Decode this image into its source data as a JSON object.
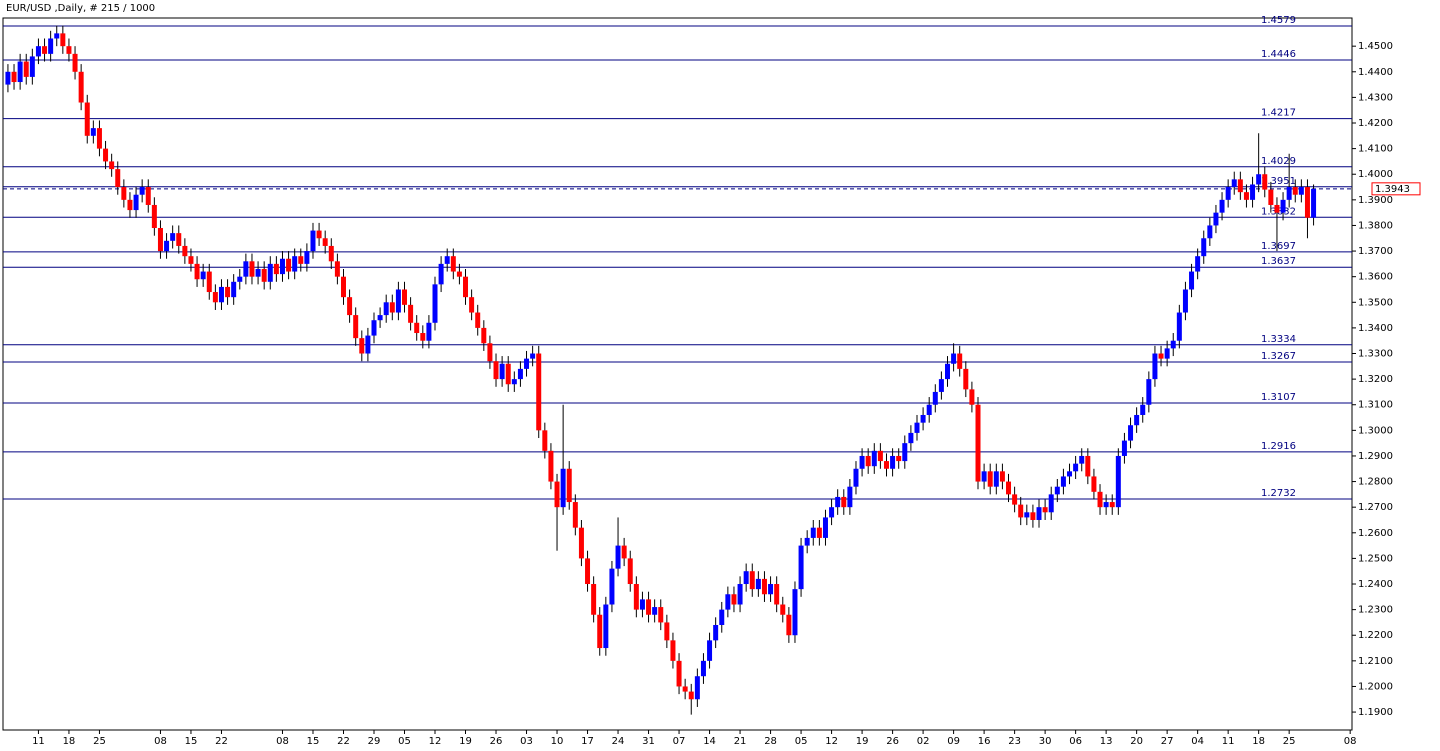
{
  "chart_data": {
    "type": "candlestick",
    "title": "EUR/USD ,Daily, # 215 / 1000",
    "up_color": "#0000ff",
    "down_color": "#ff0000",
    "wick_color": "#000000",
    "level_color": "#000080",
    "price_color": "#ff0000",
    "xlim": [
      -1.3,
      220.3
    ],
    "ylim": [
      1.183,
      1.461
    ],
    "xticks": [
      {
        "value": 5,
        "label": "11"
      },
      {
        "value": 10,
        "label": "18"
      },
      {
        "value": 15,
        "label": "25"
      },
      {
        "value": 25,
        "label": "08"
      },
      {
        "value": 30,
        "label": "15"
      },
      {
        "value": 35,
        "label": "22"
      },
      {
        "value": 45,
        "label": "08"
      },
      {
        "value": 50,
        "label": "15"
      },
      {
        "value": 55,
        "label": "22"
      },
      {
        "value": 60,
        "label": "29"
      },
      {
        "value": 65,
        "label": "05"
      },
      {
        "value": 70,
        "label": "12"
      },
      {
        "value": 75,
        "label": "19"
      },
      {
        "value": 80,
        "label": "26"
      },
      {
        "value": 85,
        "label": "03"
      },
      {
        "value": 90,
        "label": "10"
      },
      {
        "value": 95,
        "label": "17"
      },
      {
        "value": 100,
        "label": "24"
      },
      {
        "value": 105,
        "label": "31"
      },
      {
        "value": 110,
        "label": "07"
      },
      {
        "value": 115,
        "label": "14"
      },
      {
        "value": 120,
        "label": "21"
      },
      {
        "value": 125,
        "label": "28"
      },
      {
        "value": 130,
        "label": "05"
      },
      {
        "value": 135,
        "label": "12"
      },
      {
        "value": 140,
        "label": "19"
      },
      {
        "value": 145,
        "label": "26"
      },
      {
        "value": 150,
        "label": "02"
      },
      {
        "value": 155,
        "label": "09"
      },
      {
        "value": 160,
        "label": "16"
      },
      {
        "value": 165,
        "label": "23"
      },
      {
        "value": 170,
        "label": "30"
      },
      {
        "value": 175,
        "label": "06"
      },
      {
        "value": 180,
        "label": "13"
      },
      {
        "value": 185,
        "label": "20"
      },
      {
        "value": 190,
        "label": "27"
      },
      {
        "value": 195,
        "label": "04"
      },
      {
        "value": 200,
        "label": "11"
      },
      {
        "value": 205,
        "label": "18"
      },
      {
        "value": 210,
        "label": "25"
      },
      {
        "value": 220,
        "label": "08"
      }
    ],
    "yticks": [
      {
        "value": 1.19,
        "label": "1.1900"
      },
      {
        "value": 1.2,
        "label": "1.2000"
      },
      {
        "value": 1.21,
        "label": "1.2100"
      },
      {
        "value": 1.22,
        "label": "1.2200"
      },
      {
        "value": 1.23,
        "label": "1.2300"
      },
      {
        "value": 1.24,
        "label": "1.2400"
      },
      {
        "value": 1.25,
        "label": "1.2500"
      },
      {
        "value": 1.26,
        "label": "1.2600"
      },
      {
        "value": 1.27,
        "label": "1.2700"
      },
      {
        "value": 1.28,
        "label": "1.2800"
      },
      {
        "value": 1.29,
        "label": "1.2900"
      },
      {
        "value": 1.3,
        "label": "1.3000"
      },
      {
        "value": 1.31,
        "label": "1.3100"
      },
      {
        "value": 1.32,
        "label": "1.3200"
      },
      {
        "value": 1.33,
        "label": "1.3300"
      },
      {
        "value": 1.34,
        "label": "1.3400"
      },
      {
        "value": 1.35,
        "label": "1.3500"
      },
      {
        "value": 1.36,
        "label": "1.3600"
      },
      {
        "value": 1.37,
        "label": "1.3700"
      },
      {
        "value": 1.38,
        "label": "1.3800"
      },
      {
        "value": 1.39,
        "label": "1.3900"
      },
      {
        "value": 1.4,
        "label": "1.4000"
      },
      {
        "value": 1.41,
        "label": "1.4100"
      },
      {
        "value": 1.42,
        "label": "1.4200"
      },
      {
        "value": 1.43,
        "label": "1.4300"
      },
      {
        "value": 1.44,
        "label": "1.4400"
      },
      {
        "value": 1.45,
        "label": "1.4500"
      }
    ],
    "levels": [
      1.4579,
      1.4446,
      1.4217,
      1.4029,
      1.3951,
      1.3832,
      1.3697,
      1.3637,
      1.3334,
      1.3267,
      1.3107,
      1.2916,
      1.2732
    ],
    "current_price": 1.3943,
    "open": [
      1.435,
      1.44,
      1.436,
      1.444,
      1.438,
      1.446,
      1.45,
      1.447,
      1.453,
      1.455,
      1.45,
      1.447,
      1.44,
      1.428,
      1.415,
      1.418,
      1.41,
      1.405,
      1.402,
      1.395,
      1.39,
      1.386,
      1.392,
      1.395,
      1.388,
      1.379,
      1.37,
      1.374,
      1.377,
      1.372,
      1.368,
      1.365,
      1.359,
      1.362,
      1.354,
      1.35,
      1.356,
      1.352,
      1.358,
      1.36,
      1.366,
      1.36,
      1.363,
      1.358,
      1.365,
      1.361,
      1.367,
      1.362,
      1.368,
      1.365,
      1.37,
      1.378,
      1.375,
      1.372,
      1.366,
      1.36,
      1.352,
      1.345,
      1.336,
      1.33,
      1.337,
      1.343,
      1.345,
      1.35,
      1.346,
      1.355,
      1.349,
      1.342,
      1.338,
      1.335,
      1.342,
      1.357,
      1.365,
      1.368,
      1.362,
      1.36,
      1.352,
      1.346,
      1.34,
      1.334,
      1.327,
      1.32,
      1.326,
      1.318,
      1.32,
      1.324,
      1.328,
      1.33,
      1.3,
      1.292,
      1.28,
      1.27,
      1.285,
      1.272,
      1.262,
      1.25,
      1.24,
      1.228,
      1.215,
      1.232,
      1.246,
      1.255,
      1.25,
      1.24,
      1.23,
      1.234,
      1.228,
      1.231,
      1.225,
      1.218,
      1.21,
      1.2,
      1.198,
      1.195,
      1.204,
      1.21,
      1.218,
      1.224,
      1.23,
      1.236,
      1.232,
      1.24,
      1.245,
      1.238,
      1.242,
      1.236,
      1.24,
      1.232,
      1.228,
      1.22,
      1.238,
      1.255,
      1.258,
      1.262,
      1.258,
      1.266,
      1.27,
      1.274,
      1.27,
      1.278,
      1.285,
      1.29,
      1.286,
      1.292,
      1.288,
      1.285,
      1.29,
      1.288,
      1.295,
      1.299,
      1.303,
      1.306,
      1.31,
      1.315,
      1.32,
      1.326,
      1.33,
      1.324,
      1.316,
      1.31,
      1.28,
      1.284,
      1.278,
      1.284,
      1.28,
      1.275,
      1.271,
      1.266,
      1.268,
      1.265,
      1.27,
      1.268,
      1.275,
      1.278,
      1.282,
      1.284,
      1.287,
      1.29,
      1.282,
      1.276,
      1.27,
      1.272,
      1.27,
      1.29,
      1.296,
      1.302,
      1.306,
      1.31,
      1.32,
      1.33,
      1.328,
      1.332,
      1.335,
      1.346,
      1.355,
      1.362,
      1.368,
      1.375,
      1.38,
      1.385,
      1.39,
      1.395,
      1.398,
      1.393,
      1.39,
      1.396,
      1.4,
      1.394,
      1.388,
      1.385,
      1.39,
      1.395,
      1.392,
      1.395,
      1.383
    ],
    "high": [
      1.443,
      1.443,
      1.447,
      1.447,
      1.449,
      1.453,
      1.453,
      1.456,
      1.458,
      1.458,
      1.453,
      1.45,
      1.443,
      1.431,
      1.421,
      1.421,
      1.413,
      1.408,
      1.405,
      1.398,
      1.393,
      1.395,
      1.398,
      1.398,
      1.391,
      1.382,
      1.377,
      1.38,
      1.38,
      1.375,
      1.371,
      1.368,
      1.365,
      1.365,
      1.357,
      1.359,
      1.359,
      1.361,
      1.363,
      1.369,
      1.369,
      1.366,
      1.366,
      1.368,
      1.368,
      1.37,
      1.37,
      1.371,
      1.371,
      1.373,
      1.381,
      1.381,
      1.378,
      1.375,
      1.369,
      1.363,
      1.355,
      1.348,
      1.339,
      1.34,
      1.346,
      1.348,
      1.353,
      1.353,
      1.358,
      1.358,
      1.352,
      1.345,
      1.341,
      1.345,
      1.36,
      1.368,
      1.371,
      1.371,
      1.365,
      1.363,
      1.355,
      1.349,
      1.343,
      1.337,
      1.33,
      1.329,
      1.329,
      1.323,
      1.327,
      1.331,
      1.333,
      1.333,
      1.303,
      1.295,
      1.283,
      1.31,
      1.288,
      1.275,
      1.265,
      1.253,
      1.243,
      1.231,
      1.235,
      1.249,
      1.266,
      1.258,
      1.253,
      1.243,
      1.237,
      1.237,
      1.234,
      1.234,
      1.228,
      1.221,
      1.213,
      1.203,
      1.201,
      1.207,
      1.213,
      1.221,
      1.227,
      1.233,
      1.239,
      1.239,
      1.243,
      1.248,
      1.248,
      1.245,
      1.245,
      1.243,
      1.243,
      1.235,
      1.231,
      1.241,
      1.258,
      1.261,
      1.265,
      1.265,
      1.269,
      1.273,
      1.277,
      1.277,
      1.281,
      1.288,
      1.293,
      1.293,
      1.295,
      1.295,
      1.291,
      1.293,
      1.293,
      1.298,
      1.302,
      1.306,
      1.309,
      1.313,
      1.318,
      1.323,
      1.329,
      1.334,
      1.333,
      1.327,
      1.319,
      1.313,
      1.287,
      1.287,
      1.287,
      1.287,
      1.283,
      1.278,
      1.274,
      1.271,
      1.271,
      1.273,
      1.273,
      1.278,
      1.281,
      1.285,
      1.287,
      1.29,
      1.293,
      1.293,
      1.285,
      1.279,
      1.275,
      1.275,
      1.293,
      1.299,
      1.305,
      1.309,
      1.313,
      1.323,
      1.333,
      1.333,
      1.335,
      1.338,
      1.349,
      1.358,
      1.365,
      1.371,
      1.378,
      1.383,
      1.388,
      1.393,
      1.398,
      1.401,
      1.401,
      1.396,
      1.399,
      1.416,
      1.403,
      1.397,
      1.391,
      1.393,
      1.408,
      1.398,
      1.398,
      1.398,
      1.396
    ],
    "low": [
      1.432,
      1.433,
      1.433,
      1.435,
      1.435,
      1.443,
      1.444,
      1.444,
      1.45,
      1.447,
      1.444,
      1.437,
      1.425,
      1.412,
      1.412,
      1.407,
      1.402,
      1.399,
      1.392,
      1.387,
      1.383,
      1.383,
      1.389,
      1.385,
      1.376,
      1.367,
      1.367,
      1.371,
      1.369,
      1.365,
      1.362,
      1.356,
      1.356,
      1.351,
      1.347,
      1.347,
      1.349,
      1.349,
      1.355,
      1.357,
      1.357,
      1.357,
      1.355,
      1.355,
      1.358,
      1.358,
      1.359,
      1.359,
      1.362,
      1.362,
      1.367,
      1.372,
      1.369,
      1.363,
      1.357,
      1.349,
      1.342,
      1.333,
      1.327,
      1.327,
      1.334,
      1.34,
      1.342,
      1.343,
      1.343,
      1.346,
      1.339,
      1.335,
      1.332,
      1.332,
      1.339,
      1.354,
      1.362,
      1.359,
      1.357,
      1.349,
      1.343,
      1.337,
      1.331,
      1.324,
      1.317,
      1.317,
      1.315,
      1.315,
      1.317,
      1.321,
      1.325,
      1.297,
      1.289,
      1.277,
      1.253,
      1.267,
      1.269,
      1.259,
      1.247,
      1.237,
      1.225,
      1.212,
      1.212,
      1.229,
      1.243,
      1.247,
      1.237,
      1.227,
      1.227,
      1.225,
      1.225,
      1.222,
      1.215,
      1.207,
      1.197,
      1.195,
      1.189,
      1.192,
      1.201,
      1.207,
      1.215,
      1.221,
      1.227,
      1.229,
      1.229,
      1.237,
      1.235,
      1.235,
      1.233,
      1.233,
      1.229,
      1.225,
      1.217,
      1.217,
      1.235,
      1.252,
      1.255,
      1.255,
      1.255,
      1.263,
      1.267,
      1.267,
      1.267,
      1.275,
      1.282,
      1.283,
      1.283,
      1.285,
      1.282,
      1.282,
      1.285,
      1.285,
      1.292,
      1.296,
      1.3,
      1.303,
      1.307,
      1.312,
      1.317,
      1.323,
      1.321,
      1.313,
      1.307,
      1.277,
      1.277,
      1.275,
      1.275,
      1.277,
      1.272,
      1.268,
      1.263,
      1.263,
      1.262,
      1.262,
      1.265,
      1.265,
      1.272,
      1.275,
      1.279,
      1.281,
      1.284,
      1.279,
      1.273,
      1.267,
      1.267,
      1.267,
      1.267,
      1.287,
      1.293,
      1.299,
      1.303,
      1.307,
      1.317,
      1.325,
      1.325,
      1.329,
      1.332,
      1.343,
      1.352,
      1.359,
      1.365,
      1.372,
      1.377,
      1.382,
      1.387,
      1.392,
      1.39,
      1.387,
      1.387,
      1.393,
      1.391,
      1.385,
      1.37,
      1.382,
      1.387,
      1.389,
      1.389,
      1.375,
      1.38
    ],
    "close": [
      1.44,
      1.436,
      1.444,
      1.438,
      1.446,
      1.45,
      1.447,
      1.453,
      1.455,
      1.45,
      1.447,
      1.44,
      1.428,
      1.415,
      1.418,
      1.41,
      1.405,
      1.402,
      1.395,
      1.39,
      1.386,
      1.392,
      1.395,
      1.388,
      1.379,
      1.37,
      1.374,
      1.377,
      1.372,
      1.368,
      1.365,
      1.359,
      1.362,
      1.354,
      1.35,
      1.356,
      1.352,
      1.358,
      1.36,
      1.366,
      1.36,
      1.363,
      1.358,
      1.365,
      1.361,
      1.367,
      1.362,
      1.368,
      1.365,
      1.37,
      1.378,
      1.375,
      1.372,
      1.366,
      1.36,
      1.352,
      1.345,
      1.336,
      1.33,
      1.337,
      1.343,
      1.345,
      1.35,
      1.346,
      1.355,
      1.349,
      1.342,
      1.338,
      1.335,
      1.342,
      1.357,
      1.365,
      1.368,
      1.362,
      1.36,
      1.352,
      1.346,
      1.34,
      1.334,
      1.327,
      1.32,
      1.326,
      1.318,
      1.32,
      1.324,
      1.328,
      1.33,
      1.3,
      1.292,
      1.28,
      1.27,
      1.285,
      1.272,
      1.262,
      1.25,
      1.24,
      1.228,
      1.215,
      1.232,
      1.246,
      1.255,
      1.25,
      1.24,
      1.23,
      1.234,
      1.228,
      1.231,
      1.225,
      1.218,
      1.21,
      1.2,
      1.198,
      1.195,
      1.204,
      1.21,
      1.218,
      1.224,
      1.23,
      1.236,
      1.232,
      1.24,
      1.245,
      1.238,
      1.242,
      1.236,
      1.24,
      1.232,
      1.228,
      1.22,
      1.238,
      1.255,
      1.258,
      1.262,
      1.258,
      1.266,
      1.27,
      1.274,
      1.27,
      1.278,
      1.285,
      1.29,
      1.286,
      1.292,
      1.288,
      1.285,
      1.29,
      1.288,
      1.295,
      1.299,
      1.303,
      1.306,
      1.31,
      1.315,
      1.32,
      1.326,
      1.33,
      1.324,
      1.316,
      1.31,
      1.28,
      1.284,
      1.278,
      1.284,
      1.28,
      1.275,
      1.271,
      1.266,
      1.268,
      1.265,
      1.27,
      1.268,
      1.275,
      1.278,
      1.282,
      1.284,
      1.287,
      1.29,
      1.282,
      1.276,
      1.27,
      1.272,
      1.27,
      1.29,
      1.296,
      1.302,
      1.306,
      1.31,
      1.32,
      1.33,
      1.328,
      1.332,
      1.335,
      1.346,
      1.355,
      1.362,
      1.368,
      1.375,
      1.38,
      1.385,
      1.39,
      1.395,
      1.398,
      1.393,
      1.39,
      1.396,
      1.4,
      1.394,
      1.388,
      1.385,
      1.39,
      1.395,
      1.392,
      1.395,
      1.383,
      1.3943
    ]
  }
}
